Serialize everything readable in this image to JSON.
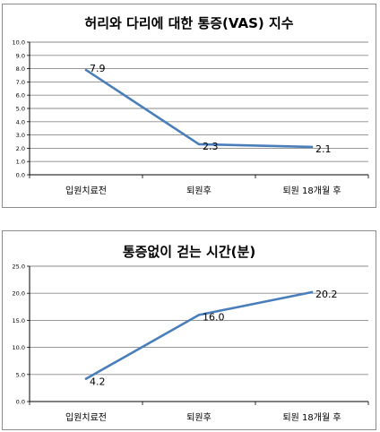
{
  "chart_data": [
    {
      "type": "line",
      "title": "허리와 다리에 대한 통증(VAS) 지수",
      "categories": [
        "입원치료전",
        "퇴원후",
        "퇴원 18개월 후"
      ],
      "series": [
        {
          "values": [
            7.9,
            2.3,
            2.1
          ]
        }
      ],
      "data_labels": [
        "7.9",
        "2.3",
        "2.1"
      ],
      "yticks": [
        "0.0",
        "1.0",
        "2.0",
        "3.0",
        "4.0",
        "5.0",
        "6.0",
        "7.0",
        "8.0",
        "9.0",
        "10.0"
      ],
      "ylim": [
        0,
        10
      ],
      "grid": true,
      "legend": "none",
      "line_color": "#4a7ebb"
    },
    {
      "type": "line",
      "title": "통증없이 걷는 시간(분)",
      "categories": [
        "입원치료전",
        "퇴원후",
        "퇴원 18개월 후"
      ],
      "series": [
        {
          "values": [
            4.2,
            16.0,
            20.2
          ]
        }
      ],
      "data_labels": [
        "4.2",
        "16.0",
        "20.2"
      ],
      "yticks": [
        "0.0",
        "5.0",
        "10.0",
        "15.0",
        "20.0",
        "25.0"
      ],
      "ylim": [
        0,
        25
      ],
      "grid": true,
      "legend": "none",
      "line_color": "#4a7ebb"
    }
  ]
}
